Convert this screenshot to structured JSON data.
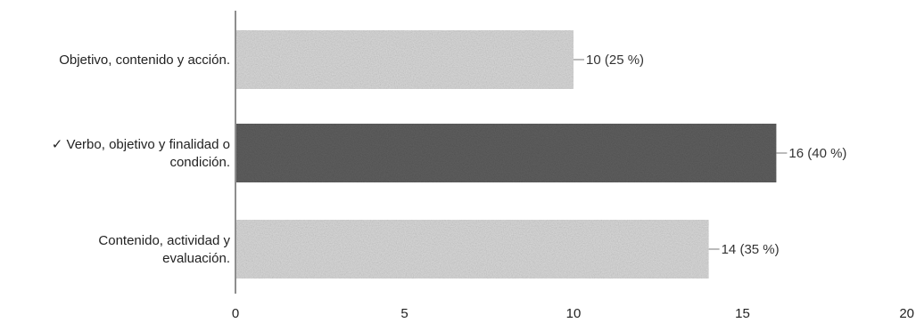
{
  "chart_data": {
    "type": "bar",
    "orientation": "horizontal",
    "categories": [
      [
        "Objetivo, contenido y acción."
      ],
      [
        "✓ Verbo, objetivo y finalidad o",
        "condición."
      ],
      [
        "Contenido, actividad y",
        "evaluación."
      ]
    ],
    "values": [
      10,
      16,
      14
    ],
    "data_labels": [
      "10 (25 %)",
      "16 (40 %)",
      "14 (35 %)"
    ],
    "highlighted_index": 1,
    "xlim": [
      0,
      20
    ],
    "xticks": [
      0,
      5,
      10,
      15,
      20
    ],
    "xlabel": "",
    "ylabel": "",
    "grid": false,
    "legend": "none",
    "colors": {
      "bar": "#d9d9d9",
      "bar_highlight": "#5f5f5f",
      "axis": "#444444",
      "text": "#222222"
    }
  }
}
